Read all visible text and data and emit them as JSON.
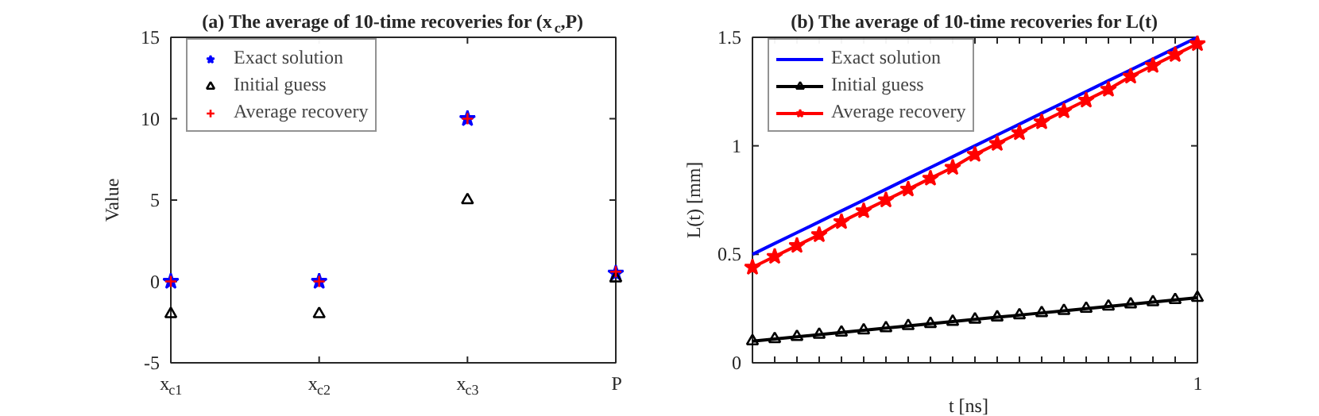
{
  "chart_data": [
    {
      "type": "scatter",
      "title": "(a) The average of 10-time recoveries for (x$_{c}$,P)",
      "ylabel": "Value",
      "categories": [
        "x$_{c1}$",
        "x$_{c2}$",
        "x$_{c3}$",
        "P"
      ],
      "ylim": [
        -5,
        15
      ],
      "yticks": [
        -5,
        0,
        5,
        10,
        15
      ],
      "grid": false,
      "legend": "top left",
      "series": [
        {
          "name": "Exact solution",
          "color": "#0000ff",
          "marker": "star",
          "values": [
            0,
            0,
            10,
            0.5
          ]
        },
        {
          "name": "Initial guess",
          "color": "#000000",
          "marker": "triangle",
          "values": [
            -2,
            -2,
            5,
            0.2
          ]
        },
        {
          "name": "Average recovery",
          "color": "#ff0000",
          "marker": "cross",
          "values": [
            0,
            0,
            10,
            0.6
          ]
        }
      ]
    },
    {
      "type": "line",
      "title": "(b) The average of 10-time recoveries for L(t)",
      "xlabel": "t [ns]",
      "ylabel": "L(t) [mm]",
      "categories": [
        null,
        null,
        null,
        null,
        null,
        null,
        null,
        null,
        null,
        null,
        null,
        null,
        null,
        null,
        null,
        null,
        null,
        null,
        null,
        null,
        null
      ],
      "annotations": [
        "1"
      ],
      "ylim": [
        0,
        1.5
      ],
      "yticks": [
        0,
        0.5,
        1,
        1.5
      ],
      "grid": false,
      "legend": "top left",
      "series": [
        {
          "name": "Exact solution",
          "color": "#0000ff",
          "marker": "none",
          "values": [
            0.5,
            0.55,
            0.6,
            0.65,
            0.7,
            0.75,
            0.8,
            0.85,
            0.9,
            0.95,
            1.0,
            1.05,
            1.1,
            1.15,
            1.2,
            1.25,
            1.3,
            1.35,
            1.4,
            1.45,
            1.5
          ]
        },
        {
          "name": "Initial guess",
          "color": "#000000",
          "marker": "triangle",
          "values": [
            0.1,
            0.11,
            0.12,
            0.13,
            0.14,
            0.15,
            0.16,
            0.17,
            0.18,
            0.19,
            0.2,
            0.21,
            0.22,
            0.23,
            0.24,
            0.25,
            0.26,
            0.27,
            0.28,
            0.29,
            0.3
          ]
        },
        {
          "name": "Average recovery",
          "color": "#ff0000",
          "marker": "star",
          "values": [
            0.44,
            0.49,
            0.54,
            0.59,
            0.65,
            0.7,
            0.75,
            0.8,
            0.85,
            0.9,
            0.96,
            1.01,
            1.06,
            1.11,
            1.16,
            1.21,
            1.26,
            1.32,
            1.37,
            1.42,
            1.47
          ]
        }
      ]
    }
  ]
}
